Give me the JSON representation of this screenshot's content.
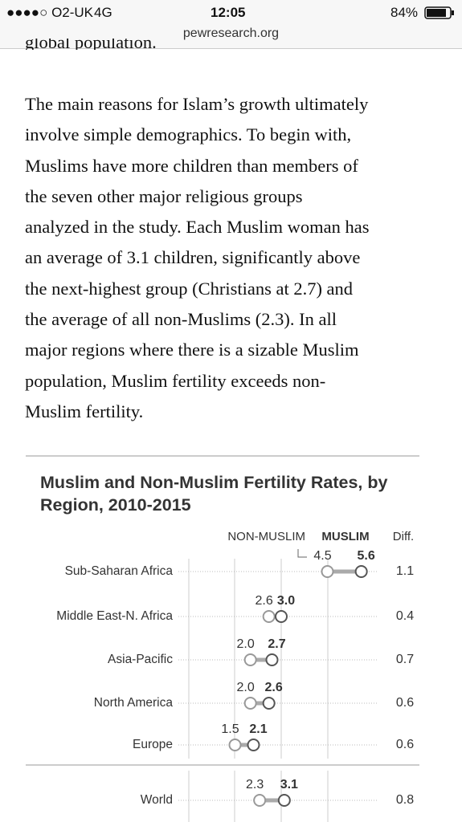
{
  "status_bar": {
    "carrier": "●●●●○ O2-UK",
    "network": "4G",
    "time": "12:05",
    "battery": "84%"
  },
  "url": "pewresearch.org",
  "article": {
    "cut_line": "global population.",
    "lines": [
      "The main reasons for Islam’s growth ultimately",
      "involve simple demographics. To begin with,",
      "Muslims have more children than members of",
      "the seven other major religious groups",
      "analyzed in the study. Each Muslim woman has",
      "an average of 3.1 children, significantly above",
      "the next-highest group (Christians at 2.7) and",
      "the average of all non-Muslims (2.3). In all",
      "major regions where there is a sizable Muslim",
      "population, Muslim fertility exceeds non-",
      "Muslim fertility."
    ]
  },
  "chart_data": {
    "type": "dumbbell",
    "title": "Muslim and Non-Muslim Fertility Rates, by Region, 2010-2015",
    "categories": [
      "Sub-Saharan Africa",
      "Middle East-N. Africa",
      "Asia-Pacific",
      "North America",
      "Europe",
      "World"
    ],
    "series": [
      {
        "name": "NON-MUSLIM",
        "color": "#999999",
        "values": [
          4.5,
          2.6,
          2.0,
          2.0,
          1.5,
          2.3
        ],
        "value_labels": [
          "4.5",
          "2.6",
          "2.0",
          "2.0",
          "1.5",
          "2.3"
        ]
      },
      {
        "name": "MUSLIM",
        "color": "#555555",
        "values": [
          5.6,
          3.0,
          2.7,
          2.6,
          2.1,
          3.1
        ],
        "value_labels": [
          "5.6",
          "3.0",
          "2.7",
          "2.6",
          "2.1",
          "3.1"
        ]
      }
    ],
    "diff": {
      "name": "Diff.",
      "values": [
        1.1,
        0.4,
        0.7,
        0.6,
        0.6,
        0.8
      ]
    },
    "xlim": [
      0,
      6
    ]
  }
}
